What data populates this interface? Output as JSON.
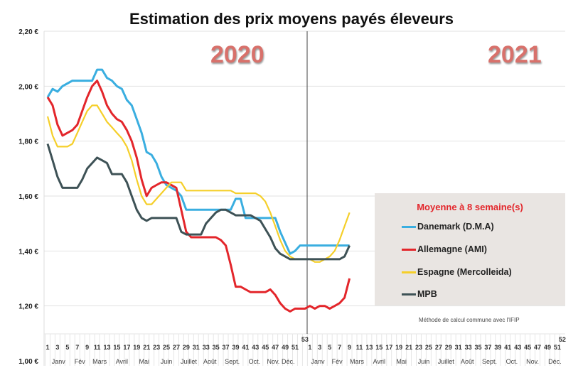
{
  "chart_data": {
    "type": "line",
    "title": "Estimation des prix moyens payés éleveurs",
    "year_labels": [
      "2020",
      "2021"
    ],
    "ylim": [
      1.0,
      2.2
    ],
    "yticks": [
      "1,00 €",
      "1,20 €",
      "1,40 €",
      "1,60 €",
      "1,80 €",
      "2,00 €",
      "2,20 €"
    ],
    "ytick_values": [
      1.0,
      1.2,
      1.4,
      1.6,
      1.8,
      2.0,
      2.2
    ],
    "week_ticks_2020": [
      "1",
      "3",
      "5",
      "7",
      "9",
      "11",
      "13",
      "15",
      "17",
      "19",
      "21",
      "23",
      "25",
      "27",
      "29",
      "31",
      "33",
      "35",
      "37",
      "39",
      "41",
      "43",
      "45",
      "47",
      "49",
      "51",
      "53"
    ],
    "week_ticks_2021": [
      "1",
      "3",
      "5",
      "7",
      "9",
      "11",
      "13",
      "15",
      "17",
      "19",
      "21",
      "23",
      "25",
      "27",
      "29",
      "31",
      "33",
      "35",
      "37",
      "39",
      "41",
      "43",
      "45",
      "47",
      "49",
      "51",
      "52"
    ],
    "months": [
      "Janv",
      "Fév",
      "Mars",
      "Avril",
      "Mai",
      "Juin",
      "Juillet",
      "Août",
      "Sept.",
      "Oct.",
      "Nov.",
      "Déc."
    ],
    "x_note": "x = week index; 2020 weeks 1-53 then 2021 weeks 1-9",
    "legend_title": "Moyenne à  8 semaine(s)",
    "footnote": "Méthode de calcul commune avec l'IFIP",
    "series": [
      {
        "name": "Danemark (D.M.A)",
        "color": "#3aaee0",
        "values": [
          1.96,
          1.99,
          1.98,
          2.0,
          2.01,
          2.02,
          2.02,
          2.02,
          2.02,
          2.02,
          2.06,
          2.06,
          2.03,
          2.02,
          2.0,
          1.99,
          1.95,
          1.93,
          1.88,
          1.83,
          1.76,
          1.75,
          1.72,
          1.67,
          1.64,
          1.63,
          1.62,
          1.6,
          1.55,
          1.55,
          1.55,
          1.55,
          1.55,
          1.55,
          1.55,
          1.55,
          1.55,
          1.55,
          1.59,
          1.59,
          1.52,
          1.52,
          1.52,
          1.52,
          1.52,
          1.52,
          1.52,
          1.47,
          1.43,
          1.39,
          1.4,
          1.42,
          1.42,
          1.42,
          1.42,
          1.42,
          1.42,
          1.42,
          1.42,
          1.42,
          1.42,
          1.42
        ]
      },
      {
        "name": "Allemagne (AMI)",
        "color": "#e3262b",
        "values": [
          1.96,
          1.93,
          1.86,
          1.82,
          1.83,
          1.84,
          1.86,
          1.91,
          1.96,
          2.0,
          2.02,
          1.98,
          1.93,
          1.9,
          1.88,
          1.87,
          1.84,
          1.8,
          1.74,
          1.66,
          1.6,
          1.63,
          1.64,
          1.65,
          1.65,
          1.64,
          1.63,
          1.55,
          1.47,
          1.45,
          1.45,
          1.45,
          1.45,
          1.45,
          1.45,
          1.44,
          1.42,
          1.35,
          1.27,
          1.27,
          1.26,
          1.25,
          1.25,
          1.25,
          1.25,
          1.26,
          1.24,
          1.21,
          1.19,
          1.18,
          1.19,
          1.19,
          1.19,
          1.2,
          1.19,
          1.2,
          1.2,
          1.19,
          1.2,
          1.21,
          1.23,
          1.3
        ]
      },
      {
        "name": "Espagne (Mercolleida)",
        "color": "#f5cf2a",
        "values": [
          1.89,
          1.82,
          1.78,
          1.78,
          1.78,
          1.79,
          1.83,
          1.87,
          1.91,
          1.93,
          1.93,
          1.9,
          1.87,
          1.85,
          1.83,
          1.81,
          1.78,
          1.73,
          1.66,
          1.6,
          1.57,
          1.57,
          1.59,
          1.61,
          1.63,
          1.65,
          1.65,
          1.65,
          1.62,
          1.62,
          1.62,
          1.62,
          1.62,
          1.62,
          1.62,
          1.62,
          1.62,
          1.62,
          1.61,
          1.61,
          1.61,
          1.61,
          1.61,
          1.6,
          1.58,
          1.54,
          1.49,
          1.44,
          1.4,
          1.38,
          1.37,
          1.37,
          1.37,
          1.37,
          1.36,
          1.36,
          1.37,
          1.38,
          1.4,
          1.44,
          1.49,
          1.54
        ]
      },
      {
        "name": "MPB",
        "color": "#3e5256",
        "values": [
          1.79,
          1.73,
          1.67,
          1.63,
          1.63,
          1.63,
          1.63,
          1.66,
          1.7,
          1.72,
          1.74,
          1.73,
          1.72,
          1.68,
          1.68,
          1.68,
          1.65,
          1.6,
          1.55,
          1.52,
          1.51,
          1.52,
          1.52,
          1.52,
          1.52,
          1.52,
          1.52,
          1.47,
          1.46,
          1.46,
          1.46,
          1.46,
          1.5,
          1.52,
          1.54,
          1.55,
          1.55,
          1.54,
          1.53,
          1.53,
          1.53,
          1.53,
          1.52,
          1.51,
          1.48,
          1.45,
          1.41,
          1.39,
          1.38,
          1.37,
          1.37,
          1.37,
          1.37,
          1.37,
          1.37,
          1.37,
          1.37,
          1.37,
          1.37,
          1.37,
          1.38,
          1.42
        ]
      }
    ]
  }
}
